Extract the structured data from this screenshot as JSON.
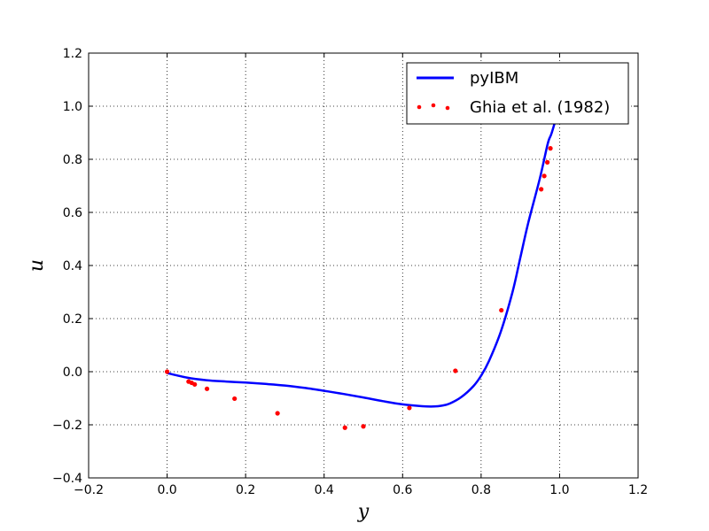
{
  "chart_data": {
    "type": "line",
    "title": "",
    "xlabel": "y",
    "ylabel": "u",
    "xlim": [
      -0.2,
      1.2
    ],
    "ylim": [
      -0.4,
      1.2
    ],
    "xticks": [
      "−0.2",
      "0.0",
      "0.2",
      "0.4",
      "0.6",
      "0.8",
      "1.0",
      "1.2"
    ],
    "yticks": [
      "−0.4",
      "−0.2",
      "0.0",
      "0.2",
      "0.4",
      "0.6",
      "0.8",
      "1.0",
      "1.2"
    ],
    "grid": true,
    "legend_position": "top-right",
    "series": [
      {
        "name": "pyIBM",
        "style": "line",
        "color": "#0000ff",
        "x": [
          0.0,
          0.05,
          0.1,
          0.15,
          0.2,
          0.25,
          0.3,
          0.35,
          0.4,
          0.45,
          0.5,
          0.55,
          0.6,
          0.65,
          0.68,
          0.7,
          0.72,
          0.75,
          0.78,
          0.8,
          0.82,
          0.85,
          0.88,
          0.9,
          0.92,
          0.95,
          0.97,
          0.98,
          1.0
        ],
        "y": [
          -0.005,
          -0.022,
          -0.032,
          -0.037,
          -0.041,
          -0.046,
          -0.052,
          -0.061,
          -0.072,
          -0.084,
          -0.097,
          -0.111,
          -0.123,
          -0.13,
          -0.131,
          -0.128,
          -0.12,
          -0.095,
          -0.055,
          -0.015,
          0.04,
          0.15,
          0.3,
          0.43,
          0.56,
          0.73,
          0.86,
          0.9,
          1.0
        ]
      },
      {
        "name": "Ghia et al. (1982)",
        "style": "points",
        "color": "#ff0000",
        "x": [
          0.0,
          0.0547,
          0.0625,
          0.0703,
          0.1016,
          0.1719,
          0.2813,
          0.4531,
          0.5,
          0.6172,
          0.7344,
          0.8516,
          0.9531,
          0.9609,
          0.9688,
          0.9766
        ],
        "y": [
          0.0,
          -0.0372,
          -0.0419,
          -0.0478,
          -0.0643,
          -0.1015,
          -0.1566,
          -0.2109,
          -0.2058,
          -0.1364,
          0.0033,
          0.2315,
          0.6872,
          0.7372,
          0.7887,
          0.8412
        ]
      }
    ]
  }
}
